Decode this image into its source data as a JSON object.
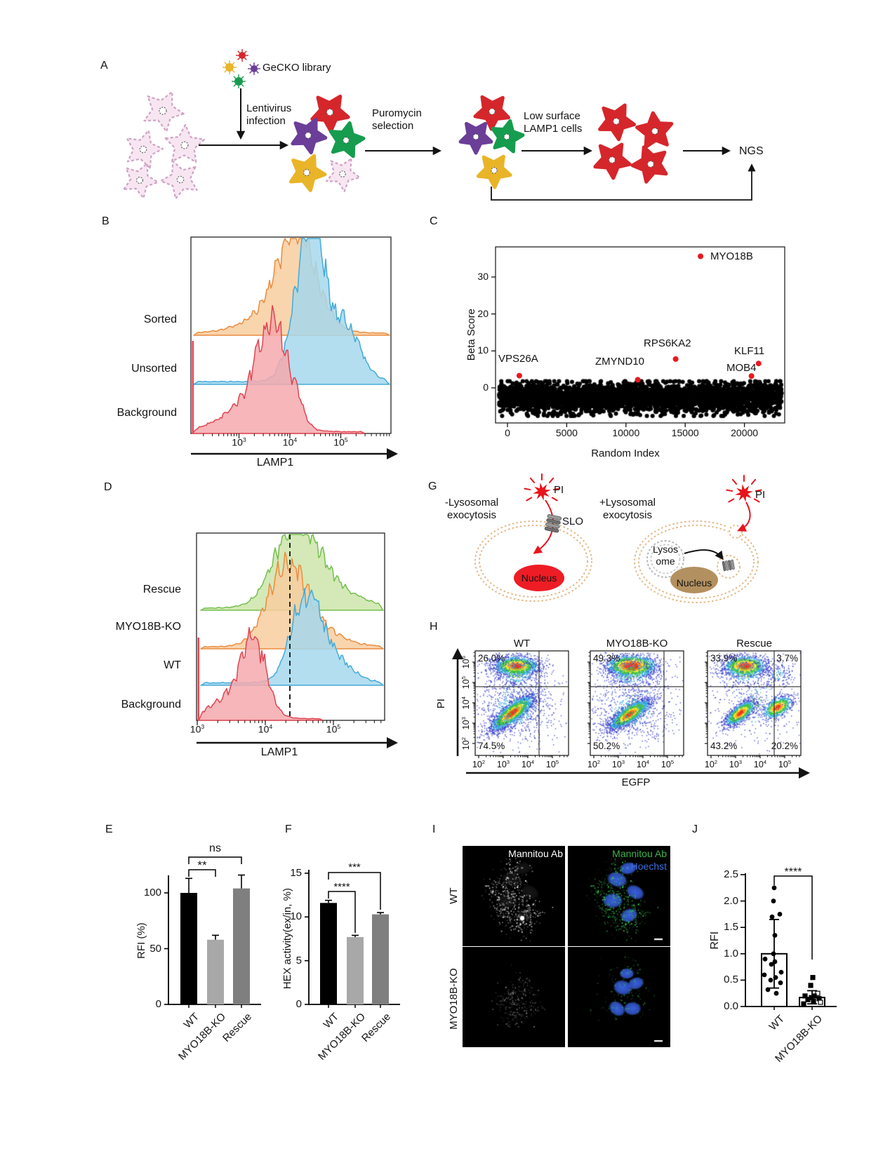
{
  "panel_labels": {
    "A": "A",
    "B": "B",
    "C": "C",
    "D": "D",
    "E": "E",
    "F": "F",
    "G": "G",
    "H": "H",
    "I": "I",
    "J": "J"
  },
  "panelA": {
    "gecko_library": "GeCKO library",
    "step1": "Lentivirus\ninfection",
    "step2": "Puromycin\nselection",
    "step3": "Low surface\nLAMP1 cells",
    "ngs": "NGS"
  },
  "panelG": {
    "left_condition": "-Lysosomal\nexocytosis",
    "right_condition": "+Lysosomal\nexocytosis",
    "pi": "PI",
    "slo": "SLO",
    "nucleus": "Nucleus",
    "lysosome": "Lysos\nome"
  },
  "panelI": {
    "row_labels": [
      "WT",
      "MYO18B-KO"
    ],
    "left_image_label": "Mannitou Ab",
    "right_image_label_1": "Mannitou Ab",
    "right_image_label_2": "Hoechst",
    "label_colors": {
      "mannitou_green": "#3CB54A",
      "hoechst_blue": "#3E6FE0"
    }
  },
  "chart_data": {
    "B": {
      "type": "histogram",
      "xlabel": "LAMP1",
      "x_scale": "log10",
      "xtick_exponents": [
        3,
        4,
        5
      ],
      "series": [
        {
          "name": "Sorted",
          "fill": "#F8CE9F",
          "stroke": "#EA8C3E",
          "peak_x": 14000
        },
        {
          "name": "Unsorted",
          "fill": "#A6D8ED",
          "stroke": "#44AAD8",
          "peak_x": 20000
        },
        {
          "name": "Background",
          "fill": "#F5A9AE",
          "stroke": "#E04551",
          "peak_x": 4500
        }
      ]
    },
    "C": {
      "type": "scatter",
      "xlabel": "Random Index",
      "ylabel": "Beta Score",
      "yticks": [
        "0",
        "10",
        "20",
        "30"
      ],
      "xticks": [
        "0",
        "5000",
        "10000",
        "15000",
        "20000"
      ],
      "xlim": [
        0,
        22500
      ],
      "ylim": [
        -8,
        38
      ],
      "background_band": "~20000 genes with beta score between -7.5 and 1.8",
      "highlight_color": "#E8191F",
      "genes": [
        {
          "name": "VPS26A",
          "x": 1000,
          "beta": 3.3
        },
        {
          "name": "ZMYND10",
          "x": 11000,
          "beta": 2.2
        },
        {
          "name": "RPS6KA2",
          "x": 14200,
          "beta": 7.8
        },
        {
          "name": "MYO18B",
          "x": 16300,
          "beta": 35.6
        },
        {
          "name": "MOB4",
          "x": 20600,
          "beta": 3.2
        },
        {
          "name": "KLF11",
          "x": 21200,
          "beta": 6.6
        }
      ]
    },
    "D": {
      "type": "histogram",
      "xlabel": "LAMP1",
      "x_scale": "log10",
      "xtick_exponents": [
        3,
        4,
        5
      ],
      "gate_x": 26000,
      "series": [
        {
          "name": "Rescue",
          "fill": "#CCE5AA",
          "stroke": "#74BF4F",
          "peak_x": 27000
        },
        {
          "name": "MYO18B-KO",
          "fill": "#F8CE9F",
          "stroke": "#EA8C3E",
          "peak_x": 20000
        },
        {
          "name": "WT",
          "fill": "#A6D8ED",
          "stroke": "#44AAD8",
          "peak_x": 38000
        },
        {
          "name": "Background",
          "fill": "#F5A9AE",
          "stroke": "#E04551",
          "peak_x": 7000
        }
      ]
    },
    "E": {
      "type": "bar",
      "ylabel": "RFI (%)",
      "yticks": [
        "0",
        "50",
        "100"
      ],
      "categories": [
        "WT",
        "MYO18B-KO",
        "Rescue"
      ],
      "values": [
        100,
        58,
        104
      ],
      "errors_plus": [
        13,
        4,
        12
      ],
      "bar_colors": [
        "#000000",
        "#A8A8A8",
        "#7F7F7F"
      ],
      "significance": [
        {
          "a": 0,
          "b": 1,
          "label": "**"
        },
        {
          "a": 0,
          "b": 2,
          "label": "ns"
        }
      ]
    },
    "F": {
      "type": "bar",
      "ylabel": "HEX activity(ex/in, %)",
      "yticks": [
        "0",
        "5",
        "10",
        "15"
      ],
      "categories": [
        "WT",
        "MYO18B-KO",
        "Rescue"
      ],
      "values": [
        11.6,
        7.7,
        10.3
      ],
      "errors_plus": [
        0.3,
        0.2,
        0.2
      ],
      "bar_colors": [
        "#000000",
        "#A8A8A8",
        "#7F7F7F"
      ],
      "significance": [
        {
          "a": 0,
          "b": 1,
          "label": "****"
        },
        {
          "a": 0,
          "b": 2,
          "label": "***"
        }
      ]
    },
    "H": {
      "type": "flow-density",
      "xlabel": "EGFP",
      "ylabel": "PI",
      "xtick_exponents": [
        2,
        3,
        4,
        5
      ],
      "ytick_exponents": [
        2,
        3,
        4,
        5,
        6
      ],
      "plots": [
        {
          "title": "WT",
          "quadrant_labels": {
            "tl": "26.0%",
            "bl": "74.5%"
          }
        },
        {
          "title": "MYO18B-KO",
          "quadrant_labels": {
            "tl": "49.3%",
            "bl": "50.2%"
          }
        },
        {
          "title": "Rescue",
          "quadrant_labels": {
            "tl": "33.9%",
            "tr": "3.7%",
            "bl": "43.2%",
            "br": "20.2%"
          }
        }
      ]
    },
    "J": {
      "type": "bar-scatter",
      "ylabel": "RFI",
      "yticks": [
        "0.0",
        "0.5",
        "1.0",
        "1.5",
        "2.0",
        "2.5"
      ],
      "categories": [
        "WT",
        "MYO18B-KO"
      ],
      "bar_means": [
        1.0,
        0.17
      ],
      "error_low": [
        0.35,
        0.05
      ],
      "error_high": [
        1.65,
        0.3
      ],
      "points_wt": [
        2.25,
        2.0,
        1.75,
        1.7,
        1.35,
        1.0,
        0.9,
        0.85,
        0.8,
        0.65,
        0.6,
        0.55,
        0.5,
        0.45,
        0.32,
        0.25
      ],
      "points_ko": [
        0.55,
        0.4,
        0.25,
        0.2,
        0.2,
        0.17,
        0.15,
        0.13,
        0.1,
        0.08,
        0.05
      ],
      "significance": [
        {
          "a": 0,
          "b": 1,
          "label": "****"
        }
      ]
    }
  }
}
